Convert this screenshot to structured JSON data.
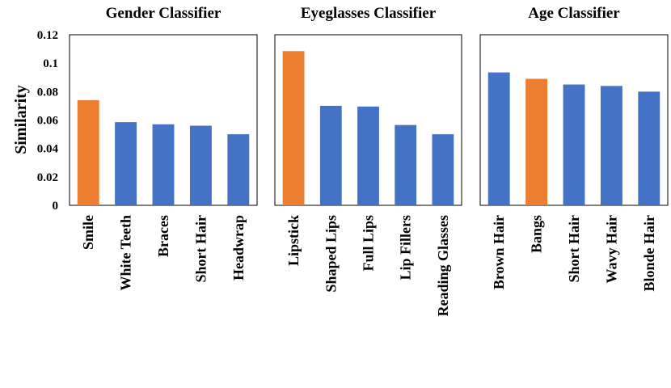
{
  "colors": {
    "base": "#4472C4",
    "highlight": "#ED7D31",
    "frame": "#000000"
  },
  "y_axis": {
    "label": "Similarity",
    "ticks": [
      "0",
      "0.02",
      "0.04",
      "0.06",
      "0.08",
      "0.1",
      "0.12"
    ]
  },
  "chart_data": [
    {
      "type": "bar",
      "title": "Gender Classifier",
      "categories": [
        "Smile",
        "White Teeth",
        "Braces",
        "Short Hair",
        "Headwrap"
      ],
      "values": [
        0.074,
        0.0585,
        0.057,
        0.056,
        0.05
      ],
      "highlight_index": 0,
      "ylabel": "Similarity",
      "ylim": [
        0,
        0.12
      ],
      "grid": false
    },
    {
      "type": "bar",
      "title": "Eyeglasses Classifier",
      "categories": [
        "Lipstick",
        "Shaped Lips",
        "Full Lips",
        "Lip Fillers",
        "Reading Glasses"
      ],
      "values": [
        0.1085,
        0.07,
        0.0695,
        0.0565,
        0.05
      ],
      "highlight_index": 0,
      "ylim": [
        0,
        0.12
      ],
      "grid": false
    },
    {
      "type": "bar",
      "title": "Age Classifier",
      "categories": [
        "Brown Hair",
        "Bangs",
        "Short Hair",
        "Wavy Hair",
        "Blonde Hair"
      ],
      "values": [
        0.0935,
        0.089,
        0.085,
        0.084,
        0.08
      ],
      "highlight_index": 1,
      "ylim": [
        0,
        0.12
      ],
      "grid": false
    }
  ]
}
